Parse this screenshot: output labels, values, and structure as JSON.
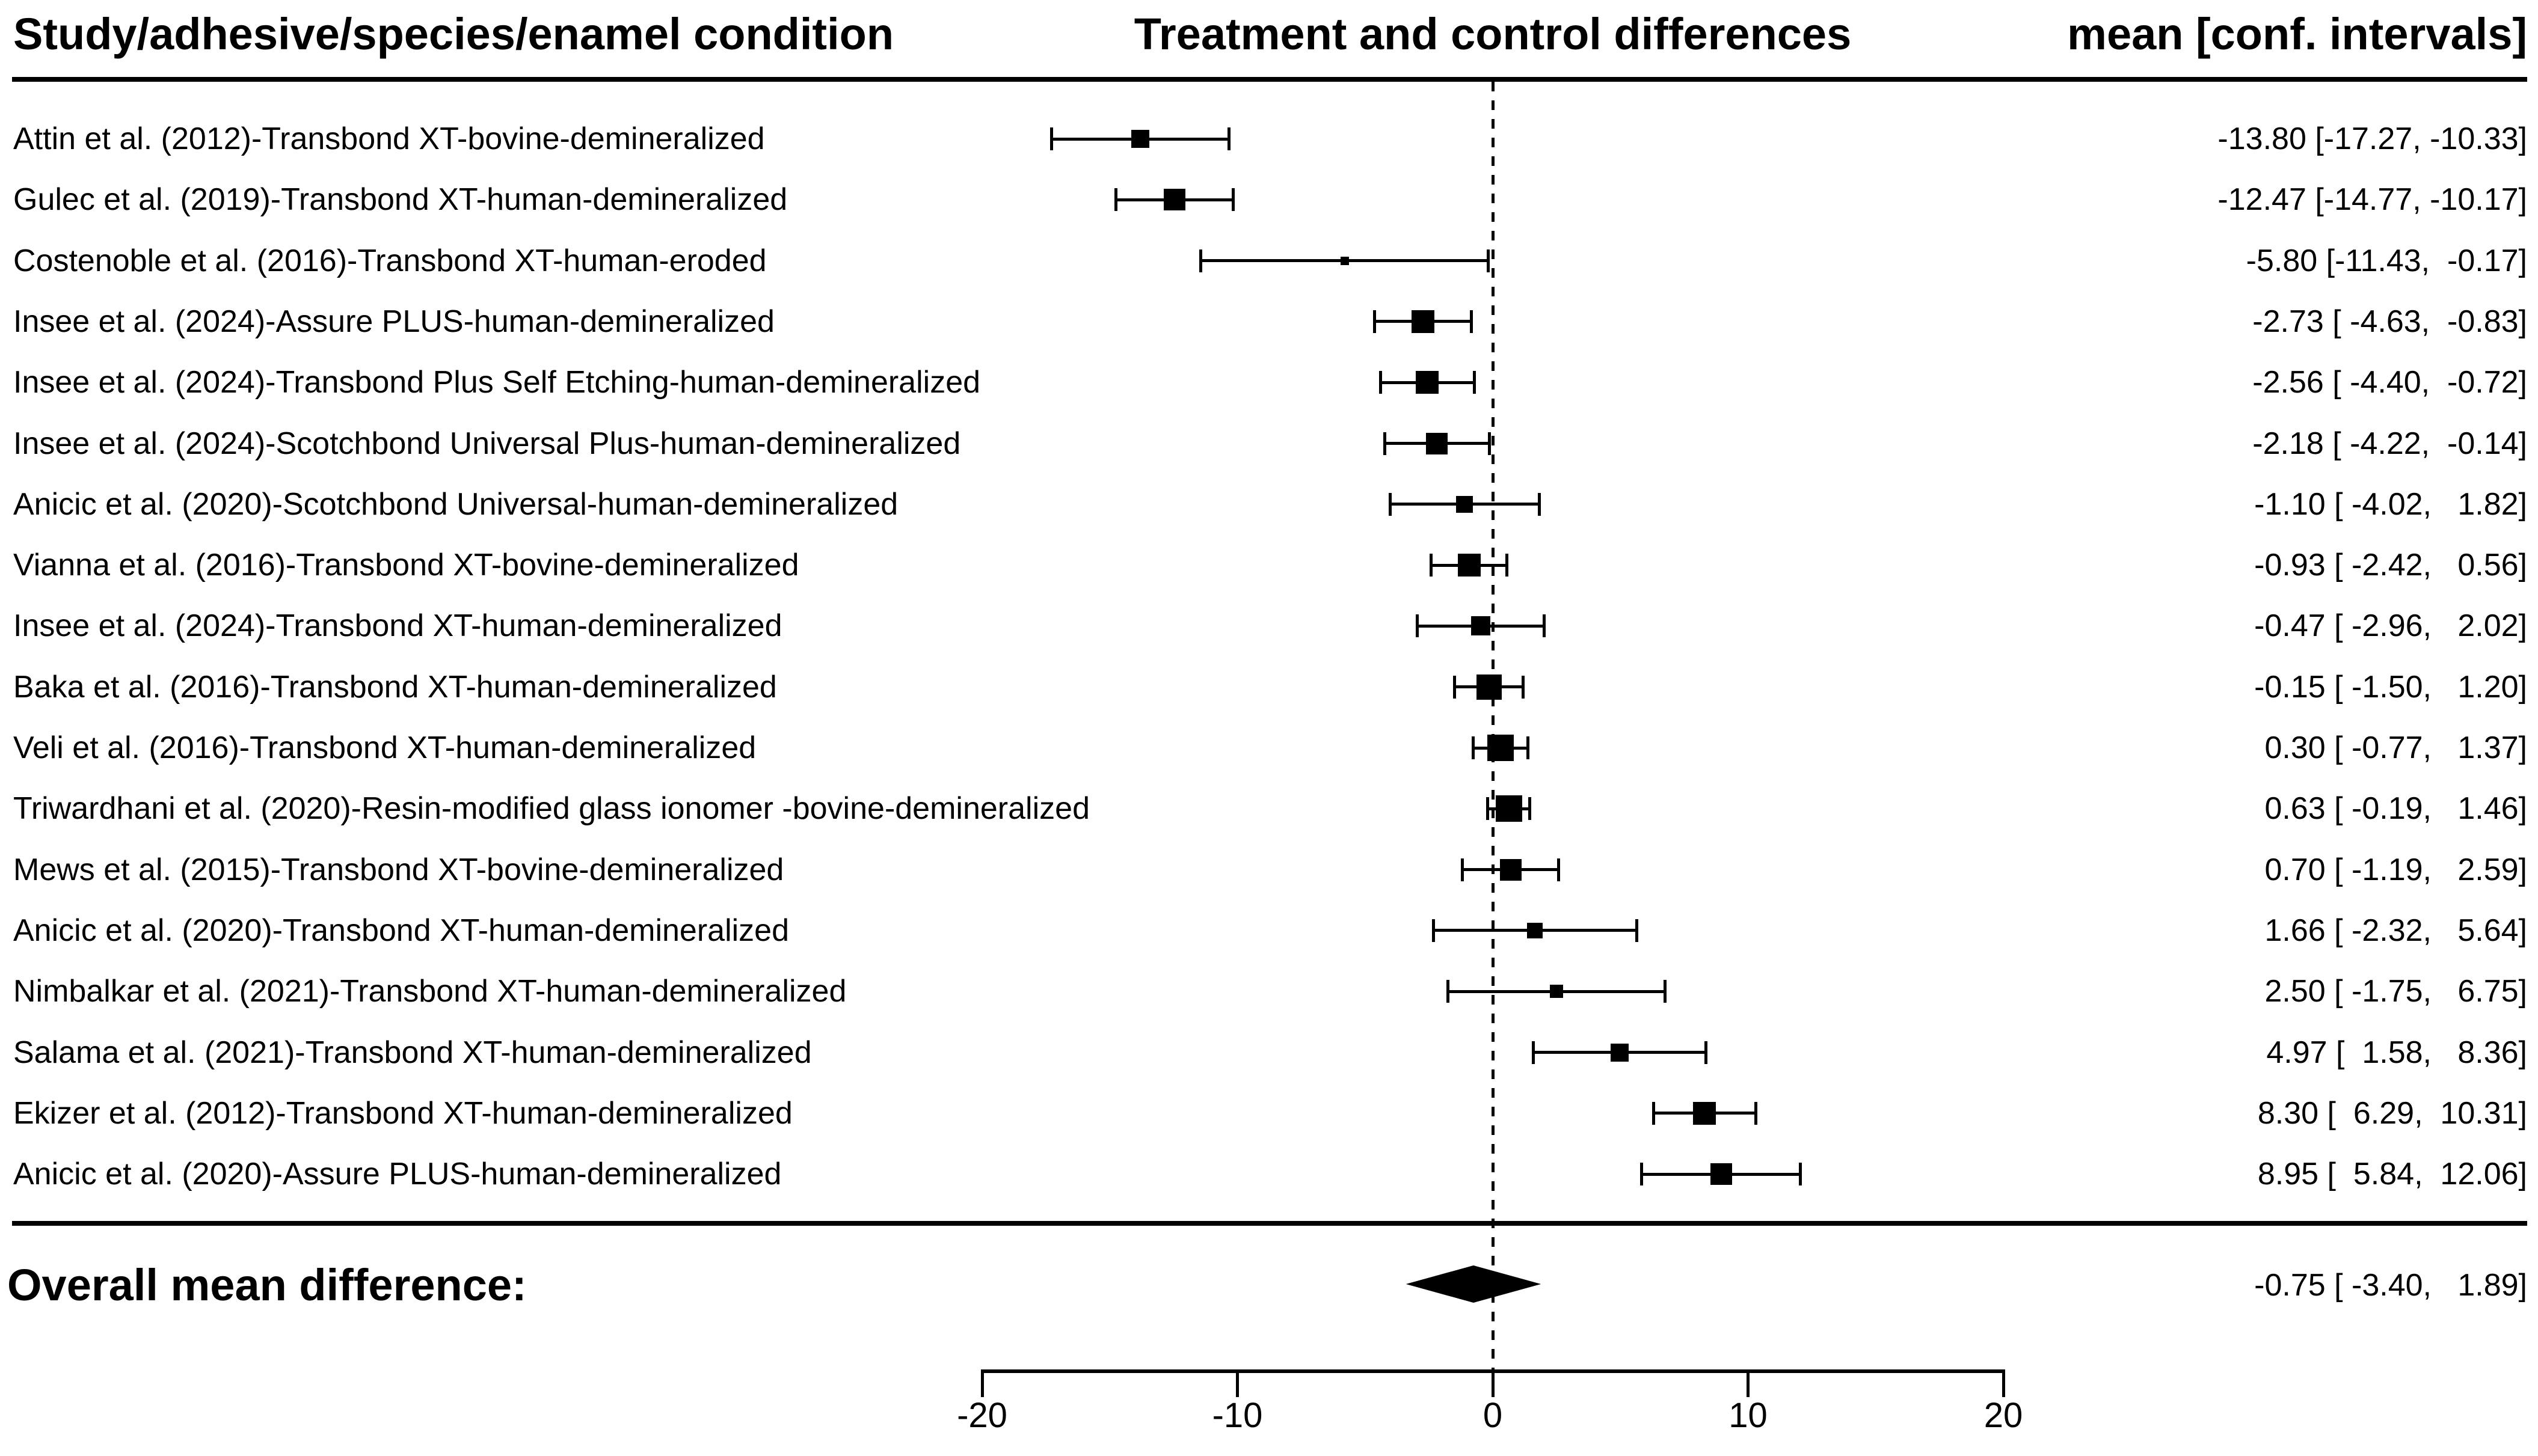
{
  "page": {
    "background_color": "#ffffff",
    "ink_color": "#000000"
  },
  "headers": {
    "left": "Study/adhesive/species/enamel condition",
    "center": "Treatment and control differences",
    "right": "mean [conf. intervals]"
  },
  "overall": {
    "label": "Overall mean difference:",
    "mean": -0.75,
    "ci_low": -3.4,
    "ci_high": 1.89,
    "value_text": "-0.75 [ -3.40,   1.89]"
  },
  "chart_data": {
    "type": "forest",
    "title": "",
    "xlabel": "",
    "x_axis": {
      "ticks": [
        -20,
        -10,
        0,
        10,
        20
      ],
      "xlim": [
        -20,
        20
      ],
      "reference_line": 0,
      "reference_line_style": "dashed"
    },
    "legend": "none",
    "grid": false,
    "studies": [
      {
        "label": "Attin et al. (2012)-Transbond XT-bovine-demineralized",
        "mean": -13.8,
        "ci_low": -17.27,
        "ci_high": -10.33,
        "value_text": "-13.80 [-17.27, -10.33]",
        "marker_size": 30
      },
      {
        "label": "Gulec et al. (2019)-Transbond XT-human-demineralized",
        "mean": -12.47,
        "ci_low": -14.77,
        "ci_high": -10.17,
        "value_text": "-12.47 [-14.77, -10.17]",
        "marker_size": 36
      },
      {
        "label": "Costenoble et al. (2016)-Transbond XT-human-eroded",
        "mean": -5.8,
        "ci_low": -11.43,
        "ci_high": -0.17,
        "value_text": "-5.80 [-11.43,  -0.17]",
        "marker_size": 14
      },
      {
        "label": "Insee et al. (2024)-Assure PLUS-human-demineralized",
        "mean": -2.73,
        "ci_low": -4.63,
        "ci_high": -0.83,
        "value_text": "-2.73 [ -4.63,  -0.83]",
        "marker_size": 38
      },
      {
        "label": "Insee et al. (2024)-Transbond Plus Self Etching-human-demineralized",
        "mean": -2.56,
        "ci_low": -4.4,
        "ci_high": -0.72,
        "value_text": "-2.56 [ -4.40,  -0.72]",
        "marker_size": 38
      },
      {
        "label": "Insee et al. (2024)-Scotchbond Universal Plus-human-demineralized",
        "mean": -2.18,
        "ci_low": -4.22,
        "ci_high": -0.14,
        "value_text": "-2.18 [ -4.22,  -0.14]",
        "marker_size": 36
      },
      {
        "label": "Anicic et al. (2020)-Scotchbond Universal-human-demineralized",
        "mean": -1.1,
        "ci_low": -4.02,
        "ci_high": 1.82,
        "value_text": "-1.10 [ -4.02,   1.82]",
        "marker_size": 28
      },
      {
        "label": "Vianna et al. (2016)-Transbond XT-bovine-demineralized",
        "mean": -0.93,
        "ci_low": -2.42,
        "ci_high": 0.56,
        "value_text": "-0.93 [ -2.42,   0.56]",
        "marker_size": 38
      },
      {
        "label": "Insee et al. (2024)-Transbond XT-human-demineralized",
        "mean": -0.47,
        "ci_low": -2.96,
        "ci_high": 2.02,
        "value_text": "-0.47 [ -2.96,   2.02]",
        "marker_size": 32
      },
      {
        "label": "Baka et al. (2016)-Transbond XT-human-demineralized",
        "mean": -0.15,
        "ci_low": -1.5,
        "ci_high": 1.2,
        "value_text": "-0.15 [ -1.50,   1.20]",
        "marker_size": 42
      },
      {
        "label": "Veli et al. (2016)-Transbond XT-human-demineralized",
        "mean": 0.3,
        "ci_low": -0.77,
        "ci_high": 1.37,
        "value_text": "0.30 [ -0.77,   1.37]",
        "marker_size": 44
      },
      {
        "label": "Triwardhani et al. (2020)-Resin-modified glass ionomer -bovine-demineralized",
        "mean": 0.63,
        "ci_low": -0.19,
        "ci_high": 1.46,
        "value_text": "0.63 [ -0.19,   1.46]",
        "marker_size": 44
      },
      {
        "label": "Mews et al. (2015)-Transbond XT-bovine-demineralized",
        "mean": 0.7,
        "ci_low": -1.19,
        "ci_high": 2.59,
        "value_text": "0.70 [ -1.19,   2.59]",
        "marker_size": 36
      },
      {
        "label": "Anicic et al. (2020)-Transbond XT-human-demineralized",
        "mean": 1.66,
        "ci_low": -2.32,
        "ci_high": 5.64,
        "value_text": "1.66 [ -2.32,   5.64]",
        "marker_size": 26
      },
      {
        "label": "Nimbalkar et al. (2021)-Transbond XT-human-demineralized",
        "mean": 2.5,
        "ci_low": -1.75,
        "ci_high": 6.75,
        "value_text": "2.50 [ -1.75,   6.75]",
        "marker_size": 22
      },
      {
        "label": "Salama et al. (2021)-Transbond XT-human-demineralized",
        "mean": 4.97,
        "ci_low": 1.58,
        "ci_high": 8.36,
        "value_text": "4.97 [  1.58,   8.36]",
        "marker_size": 30
      },
      {
        "label": "Ekizer et al. (2012)-Transbond XT-human-demineralized",
        "mean": 8.3,
        "ci_low": 6.29,
        "ci_high": 10.31,
        "value_text": "8.30 [  6.29,  10.31]",
        "marker_size": 38
      },
      {
        "label": "Anicic et al. (2020)-Assure PLUS-human-demineralized",
        "mean": 8.95,
        "ci_low": 5.84,
        "ci_high": 12.06,
        "value_text": "8.95 [  5.84,  12.06]",
        "marker_size": 36
      }
    ]
  }
}
